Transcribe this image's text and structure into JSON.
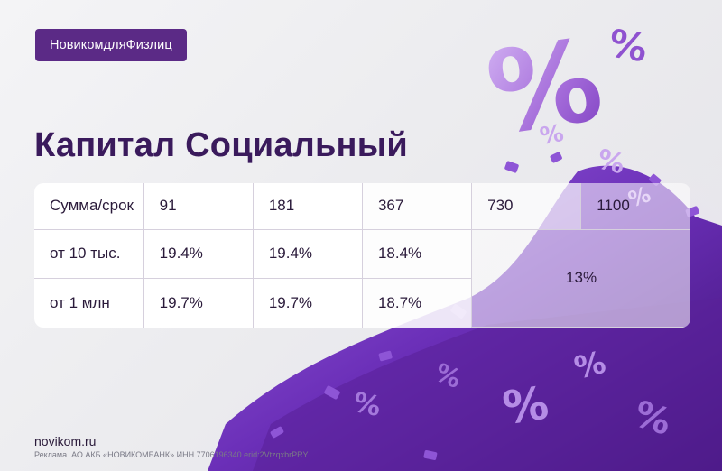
{
  "header": {
    "tag": "НовикомдляФизлиц"
  },
  "title": "Капитал Социальный",
  "table": {
    "headers": [
      "Сумма/срок",
      "91",
      "181",
      "367",
      "730",
      "1100"
    ],
    "rows": [
      {
        "label": "от 10 тыс.",
        "values": [
          "19.4%",
          "19.4%",
          "18.4%"
        ]
      },
      {
        "label": "от 1 млн",
        "values": [
          "19.7%",
          "19.7%",
          "18.7%"
        ]
      }
    ],
    "merged_rate": "13%"
  },
  "footer": {
    "site": "novikom.ru",
    "legal": "Реклама. АО АКБ «НОВИКОМБАНК» ИНН 7706196340 erid:2VtzqxbrPRY"
  },
  "colors": {
    "accent": "#5b2a86",
    "title": "#3a1a5c",
    "pile": "#7a3fc4"
  },
  "decor": {
    "icon": "percent-pile-illustration"
  }
}
